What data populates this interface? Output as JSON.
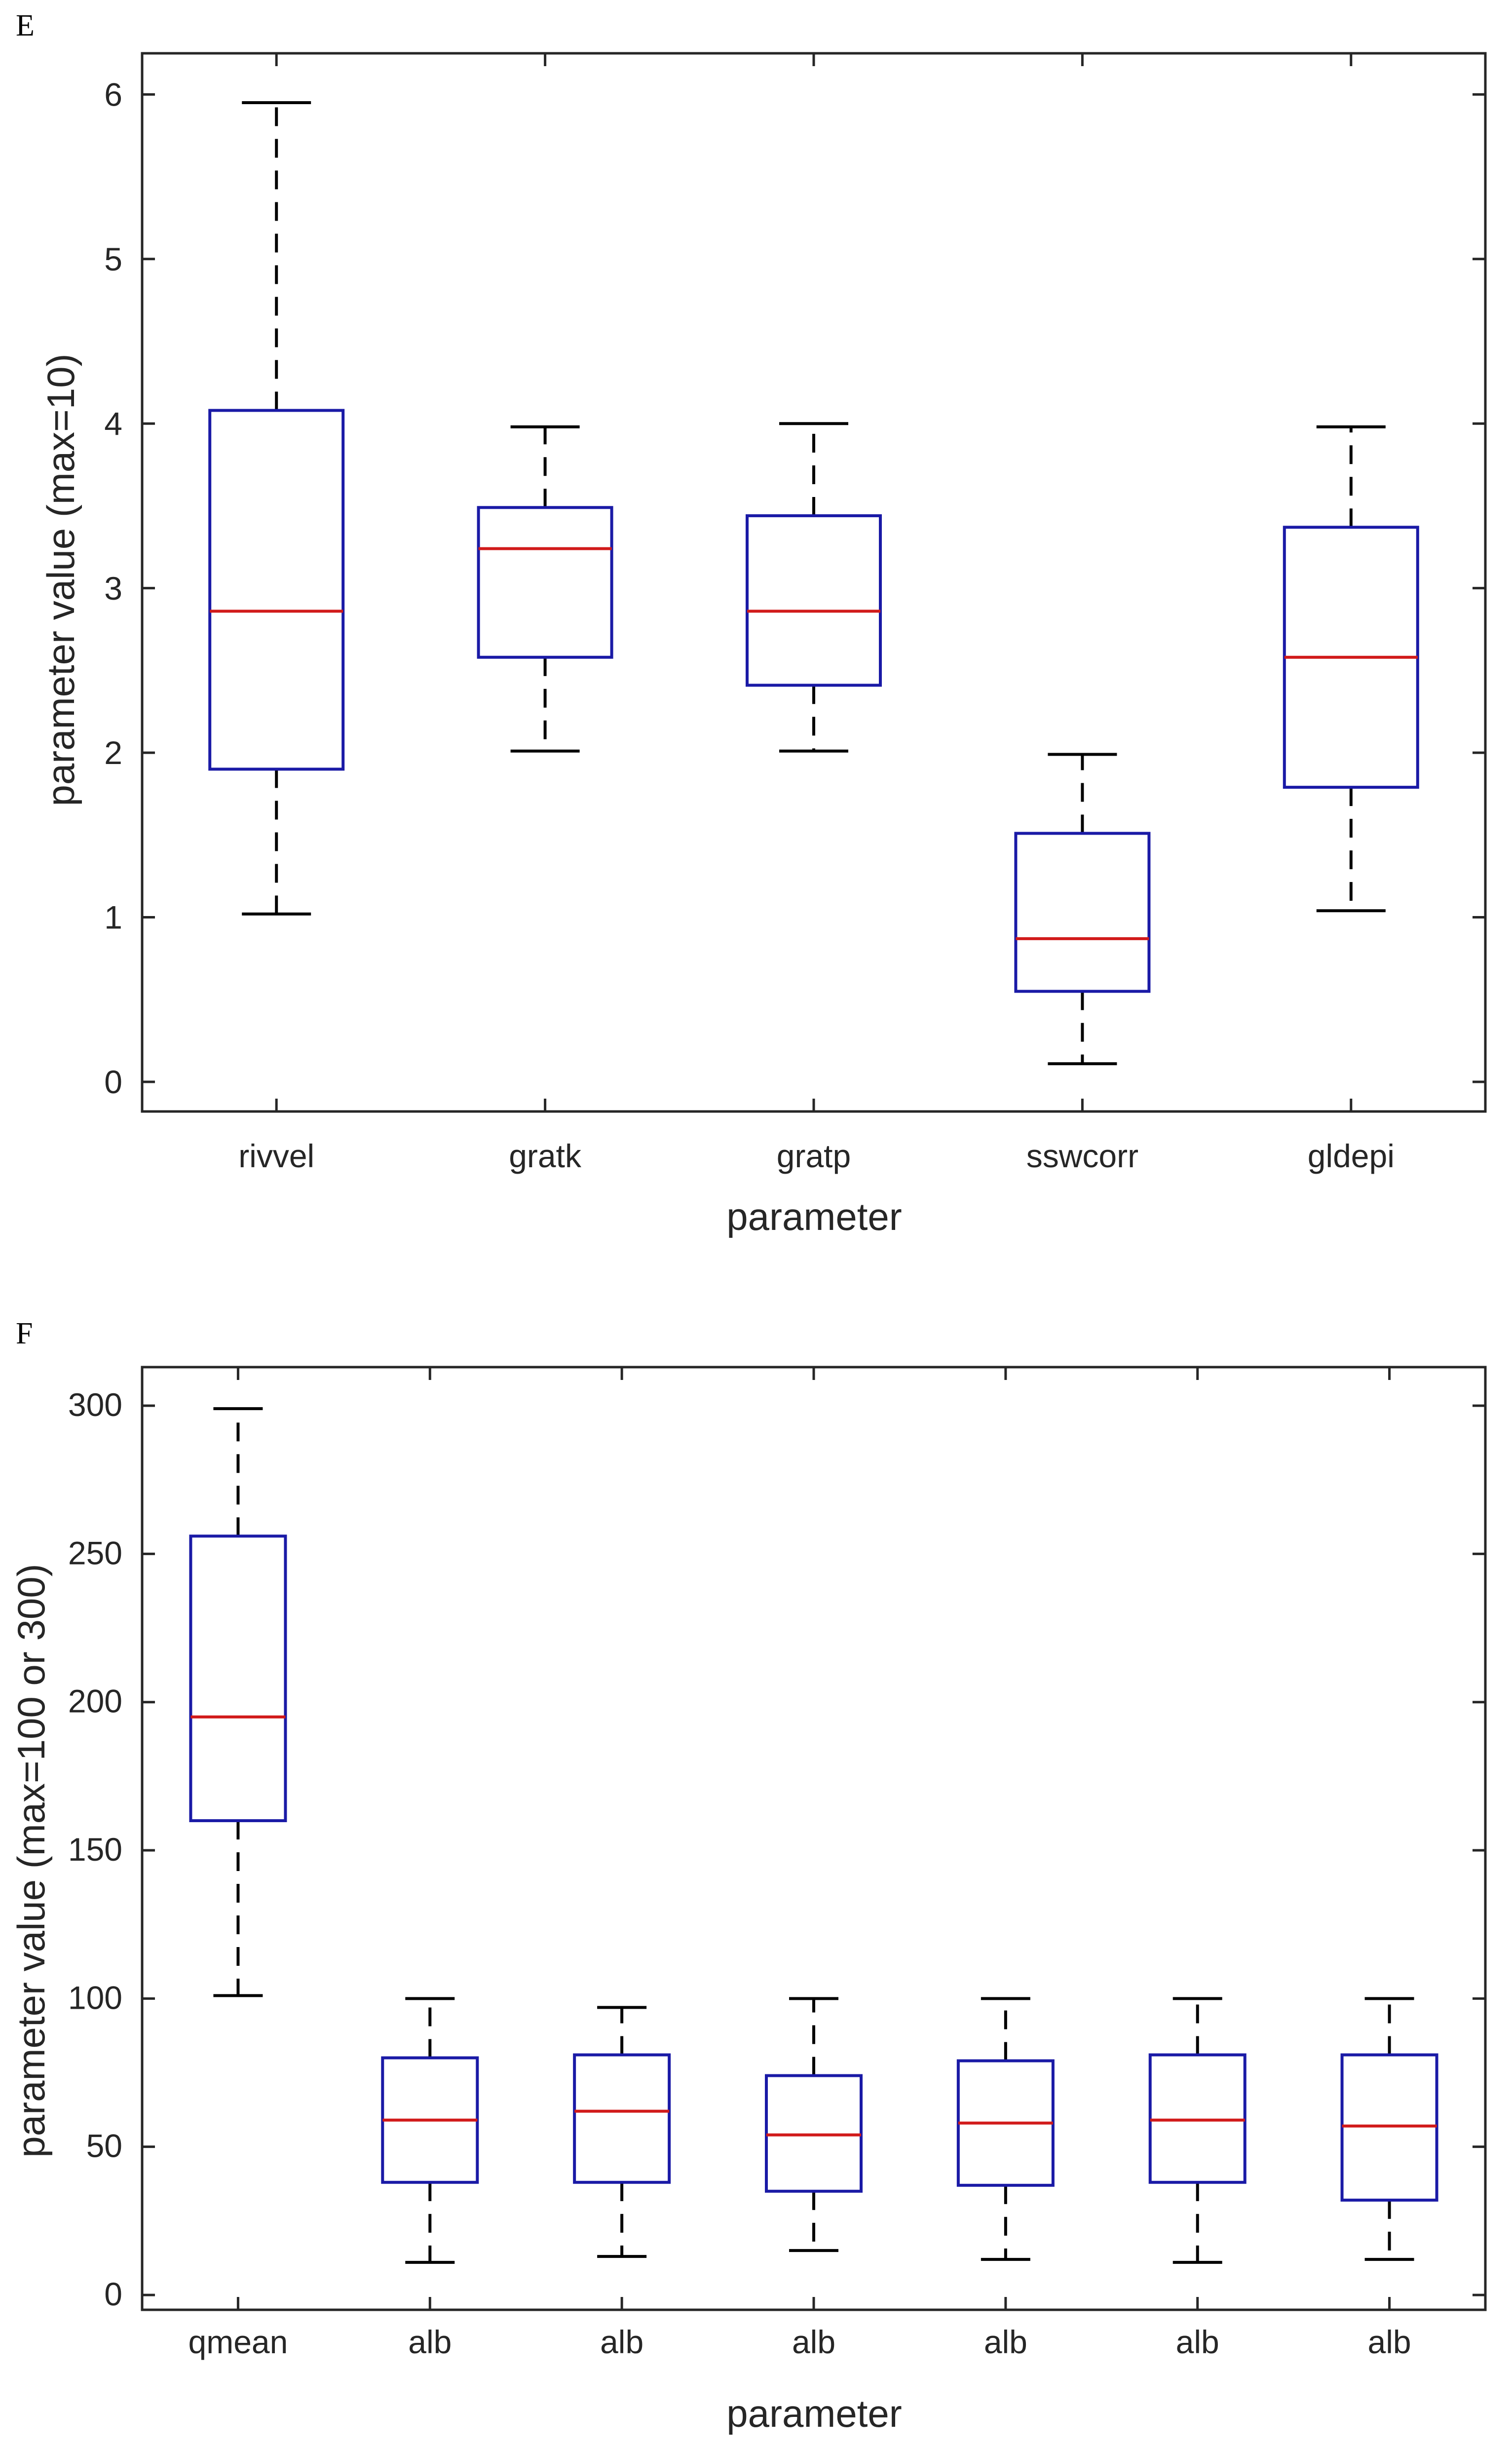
{
  "chart_data": [
    {
      "panel_label": "E",
      "type": "box",
      "title": "",
      "xlabel": "parameter",
      "ylabel": "parameter value (max=10)",
      "ylim": [
        -0.18,
        6.25
      ],
      "yticks": [
        0,
        1,
        2,
        3,
        4,
        5,
        6
      ],
      "grid": false,
      "colors": {
        "box": "#1a1aa6",
        "median": "#d11a1a",
        "whisker": "#000000",
        "axis": "#262626"
      },
      "categories": [
        "rivvel",
        "gratk",
        "gratp",
        "sswcorr",
        "gldepi"
      ],
      "boxes": [
        {
          "label": "rivvel",
          "whisker_low": 1.02,
          "q1": 1.9,
          "median": 2.86,
          "q3": 4.08,
          "whisker_high": 5.95
        },
        {
          "label": "gratk",
          "whisker_low": 2.01,
          "q1": 2.58,
          "median": 3.24,
          "q3": 3.49,
          "whisker_high": 3.98
        },
        {
          "label": "gratp",
          "whisker_low": 2.01,
          "q1": 2.41,
          "median": 2.86,
          "q3": 3.44,
          "whisker_high": 4.0
        },
        {
          "label": "sswcorr",
          "whisker_low": 0.11,
          "q1": 0.55,
          "median": 0.87,
          "q3": 1.51,
          "whisker_high": 1.99
        },
        {
          "label": "gldepi",
          "whisker_low": 1.04,
          "q1": 1.79,
          "median": 2.58,
          "q3": 3.37,
          "whisker_high": 3.98
        }
      ]
    },
    {
      "panel_label": "F",
      "type": "box",
      "title": "",
      "xlabel": "parameter",
      "ylabel": "parameter value (max=100 or 300)",
      "ylim": [
        -5,
        313
      ],
      "yticks": [
        0,
        50,
        100,
        150,
        200,
        250,
        300
      ],
      "grid": false,
      "colors": {
        "box": "#1a1aa6",
        "median": "#d11a1a",
        "whisker": "#000000",
        "axis": "#262626"
      },
      "categories": [
        "qmean",
        "alb",
        "alb",
        "alb",
        "alb",
        "alb",
        "alb"
      ],
      "boxes": [
        {
          "label": "qmean",
          "whisker_low": 101,
          "q1": 160,
          "median": 195,
          "q3": 256,
          "whisker_high": 299
        },
        {
          "label": "alb",
          "whisker_low": 11,
          "q1": 38,
          "median": 59,
          "q3": 80,
          "whisker_high": 100
        },
        {
          "label": "alb",
          "whisker_low": 13,
          "q1": 38,
          "median": 62,
          "q3": 81,
          "whisker_high": 97
        },
        {
          "label": "alb",
          "whisker_low": 15,
          "q1": 35,
          "median": 54,
          "q3": 74,
          "whisker_high": 100
        },
        {
          "label": "alb",
          "whisker_low": 12,
          "q1": 37,
          "median": 58,
          "q3": 79,
          "whisker_high": 100
        },
        {
          "label": "alb",
          "whisker_low": 11,
          "q1": 38,
          "median": 59,
          "q3": 81,
          "whisker_high": 100
        },
        {
          "label": "alb",
          "whisker_low": 12,
          "q1": 32,
          "median": 57,
          "q3": 81,
          "whisker_high": 100
        }
      ]
    }
  ]
}
